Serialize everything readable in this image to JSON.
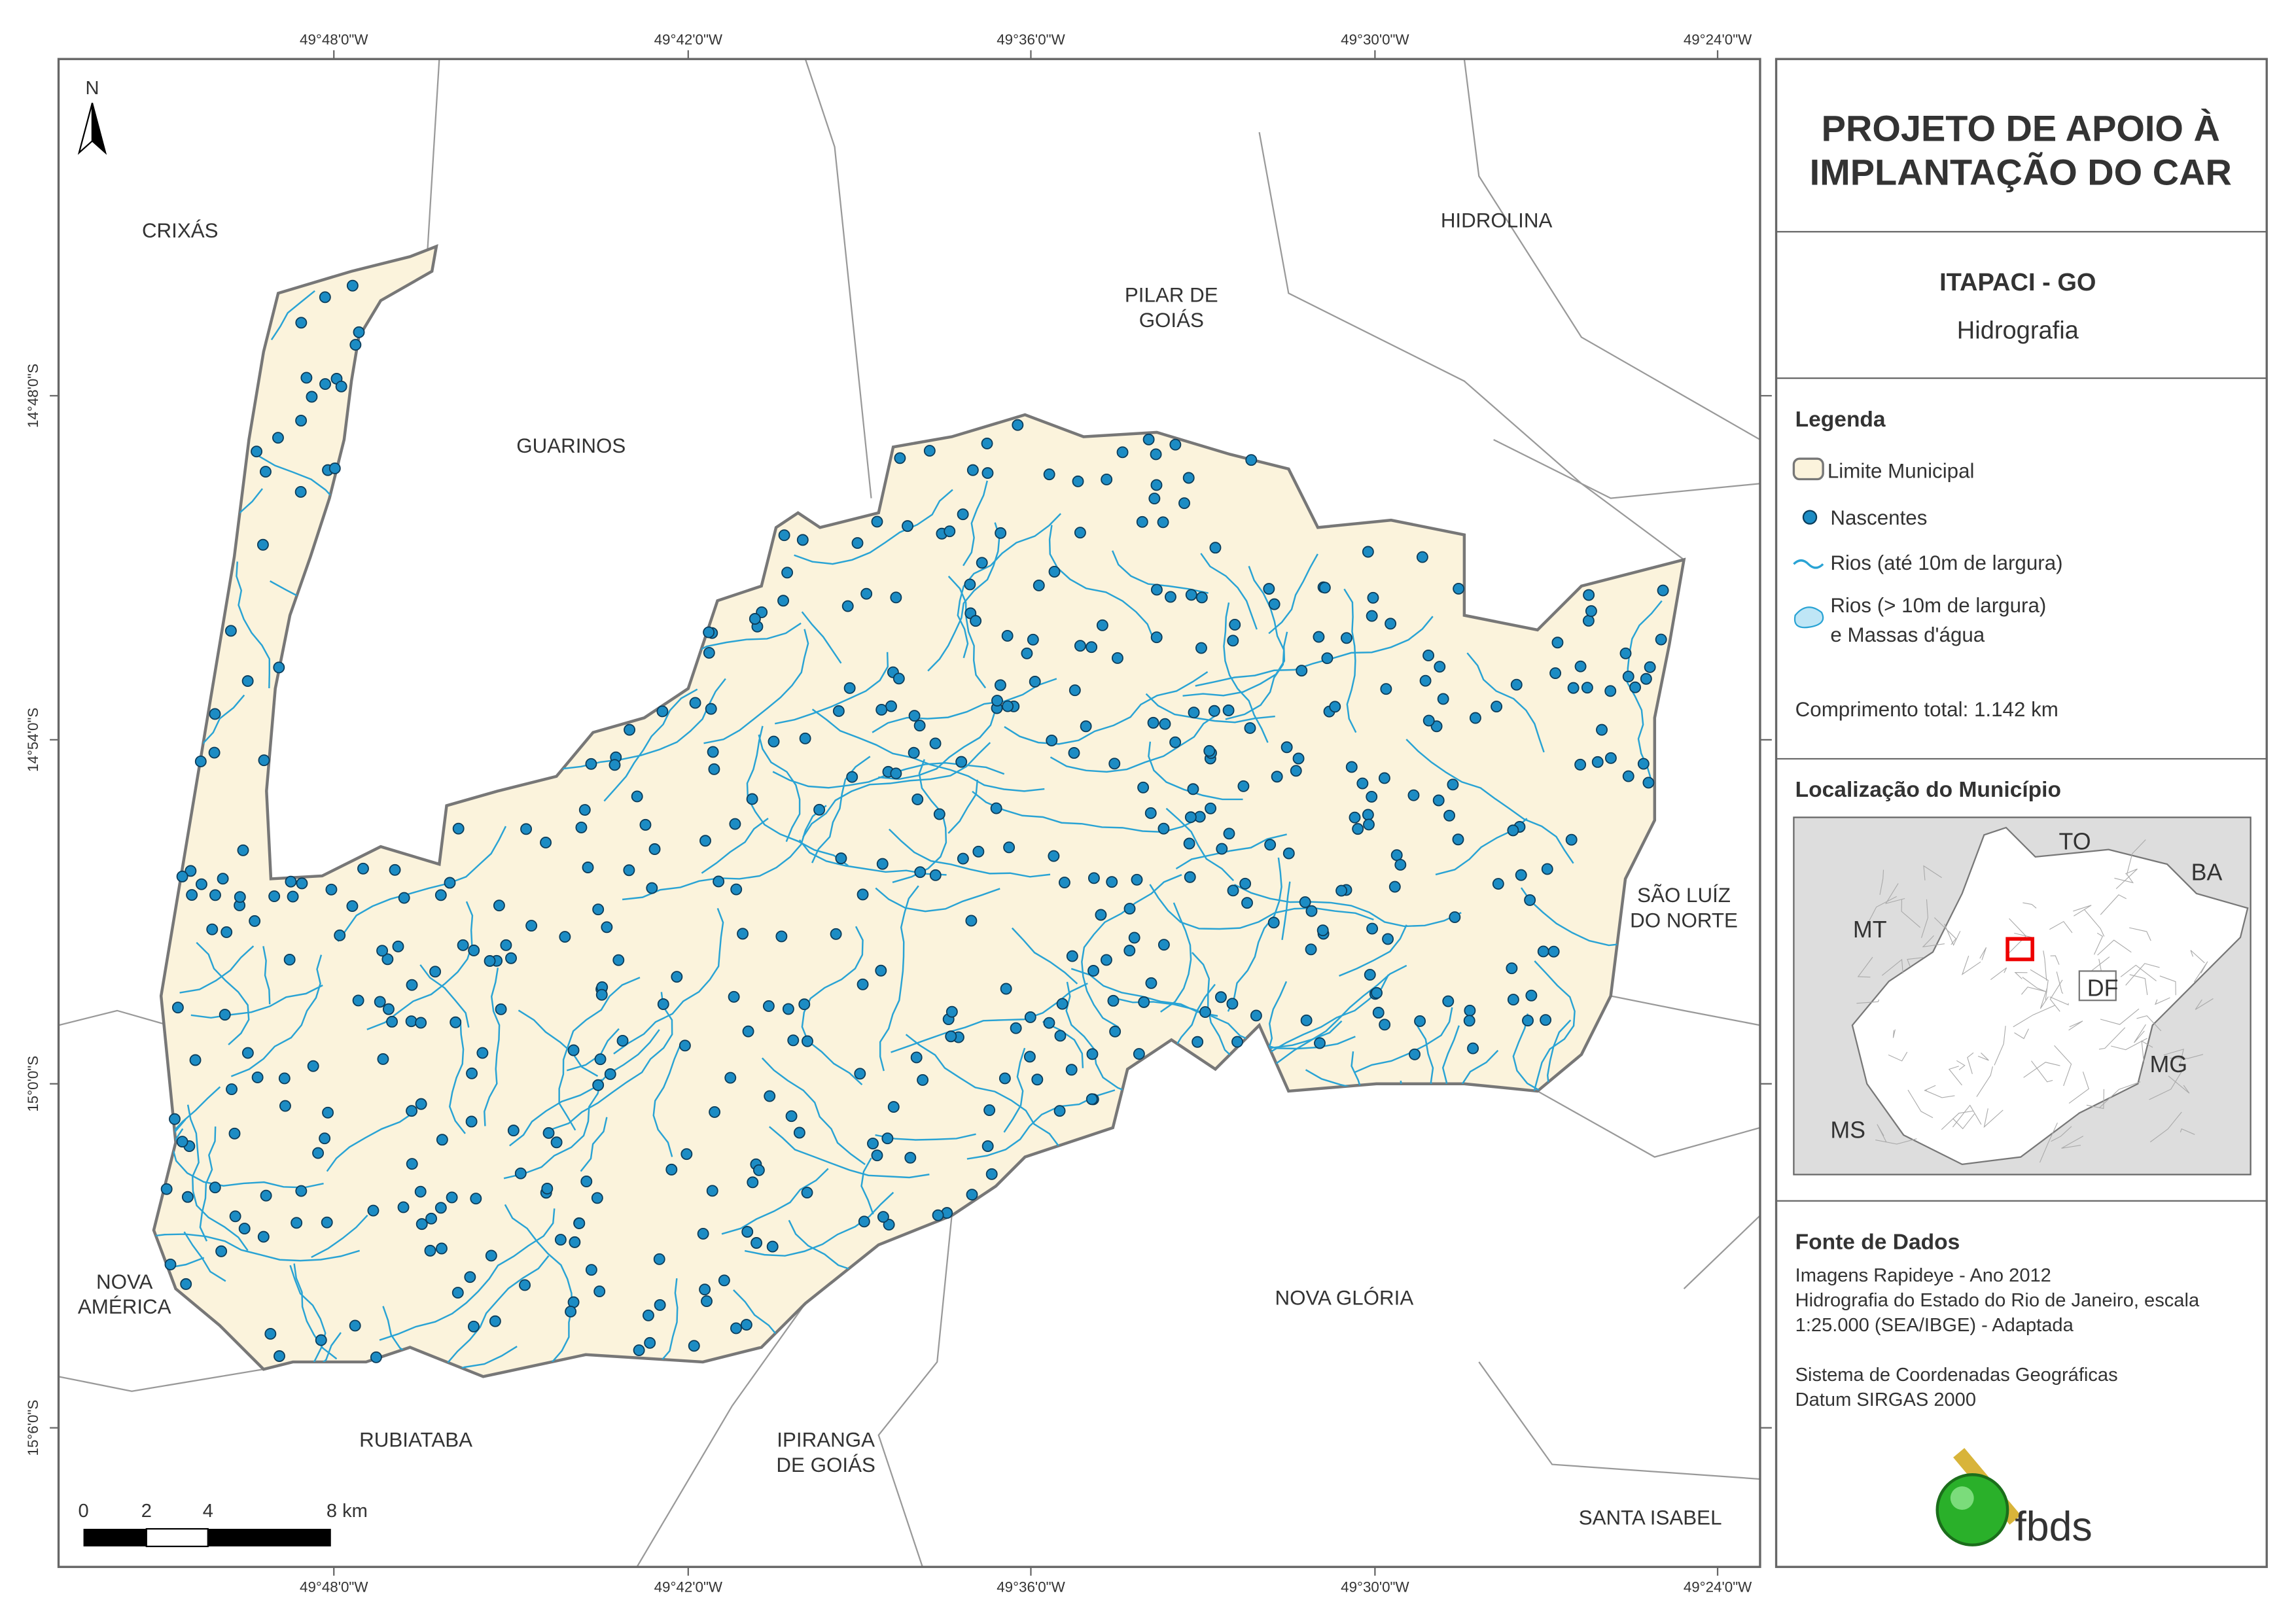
{
  "map": {
    "north": "N",
    "coordinates": {
      "top": [
        "49°48'0\"W",
        "49°42'0\"W",
        "49°36'0\"W",
        "49°30'0\"W",
        "49°24'0\"W"
      ],
      "bottom": [
        "49°48'0\"W",
        "49°42'0\"W",
        "49°36'0\"W",
        "49°30'0\"W",
        "49°24'0\"W"
      ],
      "left": [
        "14°48'0\"S",
        "14°54'0\"S",
        "15°0'0\"S",
        "15°6'0\"S"
      ]
    },
    "places": [
      {
        "lines": [
          "CRIXÁS"
        ]
      },
      {
        "lines": [
          "GUARINOS"
        ]
      },
      {
        "lines": [
          "PILAR DE",
          "GOIÁS"
        ]
      },
      {
        "lines": [
          "HIDROLINA"
        ]
      },
      {
        "lines": [
          "SÃO LUÍZ",
          "DO NORTE"
        ]
      },
      {
        "lines": [
          "NOVA",
          "AMÉRICA"
        ]
      },
      {
        "lines": [
          "NOVA GLÓRIA"
        ]
      },
      {
        "lines": [
          "RUBIATABA"
        ]
      },
      {
        "lines": [
          "IPIRANGA",
          "DE GOIÁS"
        ]
      },
      {
        "lines": [
          "SANTA ISABEL"
        ]
      }
    ],
    "scale_bar": [
      "0",
      "2",
      "4",
      "8 km"
    ]
  },
  "panel": {
    "title": [
      "PROJETO DE APOIO À",
      "IMPLANTAÇÃO DO CAR"
    ],
    "municipality": "ITAPACI - GO",
    "theme": "Hidrografia",
    "legend": {
      "title": "Legenda",
      "items": [
        [
          "Limite Municipal"
        ],
        [
          "Nascentes"
        ],
        [
          "Rios (até 10m de largura)"
        ],
        [
          "Rios (> 10m de largura)",
          "e Massas d'água"
        ]
      ]
    },
    "total_length": "Comprimento total:  1.142 km",
    "location": {
      "title": "Localização do Município",
      "states": [
        "TO",
        "BA",
        "MT",
        "DF",
        "MG",
        "MS"
      ]
    },
    "sources": {
      "title": "Fonte de Dados",
      "lines": [
        "Imagens Rapideye - Ano 2012",
        "Hidrografia do Estado do Rio de Janeiro, escala",
        "1:25.000 (SEA/IBGE) - Adaptada",
        "",
        "Sistema de Coordenadas Geográficas",
        "Datum SIRGAS 2000"
      ]
    },
    "logo": "fbds"
  }
}
